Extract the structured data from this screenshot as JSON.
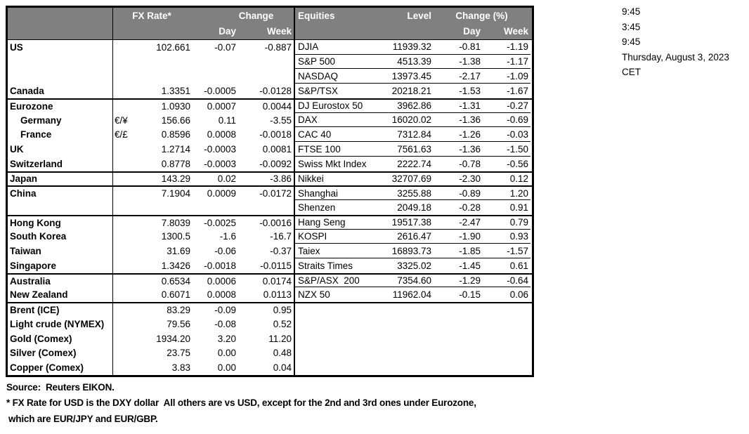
{
  "colors": {
    "header_bg": "#808080",
    "header_text": "#ffffff",
    "border": "#000000"
  },
  "header": {
    "fx_rate": "FX Rate*",
    "change": "Change",
    "day": "Day",
    "week": "Week",
    "equities": "Equities",
    "level": "Level",
    "change_pct": "Change (%)",
    "eday": "Day",
    "eweek": "Week"
  },
  "rows": [
    {
      "name": "US",
      "pair": "",
      "rate": "102.661",
      "day": "-0.07",
      "week": "-0.887",
      "eq": "DJIA",
      "level": "11939.32",
      "eday": "-0.81",
      "eweek": "-1.19",
      "group_start": false,
      "indent": false
    },
    {
      "name": "",
      "pair": "",
      "rate": "",
      "day": "",
      "week": "",
      "eq": "S&P 500",
      "level": "4513.39",
      "eday": "-1.38",
      "eweek": "-1.17",
      "group_start": false,
      "indent": false
    },
    {
      "name": "",
      "pair": "",
      "rate": "",
      "day": "",
      "week": "",
      "eq": "NASDAQ",
      "level": "13973.45",
      "eday": "-2.17",
      "eweek": "-1.09",
      "group_start": false,
      "indent": false
    },
    {
      "name": "Canada",
      "pair": "",
      "rate": "1.3351",
      "day": "-0.0005",
      "week": "-0.0128",
      "eq": "S&P/TSX",
      "level": "20218.21",
      "eday": "-1.53",
      "eweek": "-1.67",
      "group_start": false,
      "indent": false
    },
    {
      "name": "Eurozone",
      "pair": "",
      "rate": "1.0930",
      "day": "0.0007",
      "week": "0.0044",
      "eq": "DJ Eurostox 50",
      "level": "3962.86",
      "eday": "-1.31",
      "eweek": "-0.27",
      "group_start": true,
      "indent": false
    },
    {
      "name": "Germany",
      "pair": "€/¥",
      "rate": "156.66",
      "day": "0.11",
      "week": "-3.55",
      "eq": "DAX",
      "level": "16020.02",
      "eday": "-1.36",
      "eweek": "-0.69",
      "group_start": false,
      "indent": true
    },
    {
      "name": "France",
      "pair": "€/£",
      "rate": "0.8596",
      "day": "0.0008",
      "week": "-0.0018",
      "eq": "CAC 40",
      "level": "7312.84",
      "eday": "-1.26",
      "eweek": "-0.03",
      "group_start": false,
      "indent": true
    },
    {
      "name": "UK",
      "pair": "",
      "rate": "1.2714",
      "day": "-0.0003",
      "week": "0.0081",
      "eq": "FTSE 100",
      "level": "7561.63",
      "eday": "-1.36",
      "eweek": "-1.50",
      "group_start": false,
      "indent": false
    },
    {
      "name": "Switzerland",
      "pair": "",
      "rate": "0.8778",
      "day": "-0.0003",
      "week": "-0.0092",
      "eq": "Swiss Mkt Index",
      "level": "2222.74",
      "eday": "-0.78",
      "eweek": "-0.56",
      "group_start": false,
      "indent": false
    },
    {
      "name": "Japan",
      "pair": "",
      "rate": "143.29",
      "day": "0.02",
      "week": "-3.86",
      "eq": "Nikkei",
      "level": "32707.69",
      "eday": "-2.30",
      "eweek": "0.12",
      "group_start": true,
      "indent": false
    },
    {
      "name": "China",
      "pair": "",
      "rate": "7.1904",
      "day": "0.0009",
      "week": "-0.0172",
      "eq": "Shanghai",
      "level": "3255.88",
      "eday": "-0.89",
      "eweek": "1.20",
      "group_start": true,
      "indent": false
    },
    {
      "name": "",
      "pair": "",
      "rate": "",
      "day": "",
      "week": "",
      "eq": "Shenzen",
      "level": "2049.18",
      "eday": "-0.28",
      "eweek": "0.91",
      "group_start": false,
      "indent": false
    },
    {
      "name": "Hong Kong",
      "pair": "",
      "rate": "7.8039",
      "day": "-0.0025",
      "week": "-0.0016",
      "eq": "Hang Seng",
      "level": "19517.38",
      "eday": "-2.47",
      "eweek": "0.79",
      "group_start": true,
      "indent": false
    },
    {
      "name": "South Korea",
      "pair": "",
      "rate": "1300.5",
      "day": "-1.6",
      "week": "-16.7",
      "eq": "KOSPI",
      "level": "2616.47",
      "eday": "-1.90",
      "eweek": "0.93",
      "group_start": false,
      "indent": false
    },
    {
      "name": "Taiwan",
      "pair": "",
      "rate": "31.69",
      "day": "-0.06",
      "week": "-0.37",
      "eq": "Taiex",
      "level": "16893.73",
      "eday": "-1.85",
      "eweek": "-1.57",
      "group_start": false,
      "indent": false
    },
    {
      "name": "Singapore",
      "pair": "",
      "rate": "1.3426",
      "day": "-0.0018",
      "week": "-0.0115",
      "eq": "Straits Times",
      "level": "3325.02",
      "eday": "-1.45",
      "eweek": "0.61",
      "group_start": false,
      "indent": false
    },
    {
      "name": "Australia",
      "pair": "",
      "rate": "0.6534",
      "day": "0.0006",
      "week": "0.0174",
      "eq": "S&P/ASX  200",
      "level": "7354.60",
      "eday": "-1.29",
      "eweek": "-0.64",
      "group_start": true,
      "indent": false
    },
    {
      "name": "New Zealand",
      "pair": "",
      "rate": "0.6071",
      "day": "0.0008",
      "week": "0.0113",
      "eq": "NZX 50",
      "level": "11962.04",
      "eday": "-0.15",
      "eweek": "0.06",
      "group_start": false,
      "indent": false
    },
    {
      "name": "Brent (ICE)",
      "pair": "",
      "rate": "83.29",
      "day": "-0.09",
      "week": "0.95",
      "eq": "",
      "level": "",
      "eday": "",
      "eweek": "",
      "group_start": true,
      "indent": false
    },
    {
      "name": "Light crude (NYMEX)",
      "pair": "",
      "rate": "79.56",
      "day": "-0.08",
      "week": "0.52",
      "eq": "",
      "level": "",
      "eday": "",
      "eweek": "",
      "group_start": false,
      "indent": false
    },
    {
      "name": "Gold (Comex)",
      "pair": "",
      "rate": "1934.20",
      "day": "3.20",
      "week": "11.20",
      "eq": "",
      "level": "",
      "eday": "",
      "eweek": "",
      "group_start": false,
      "indent": false
    },
    {
      "name": "Silver (Comex)",
      "pair": "",
      "rate": "23.75",
      "day": "0.00",
      "week": "0.48",
      "eq": "",
      "level": "",
      "eday": "",
      "eweek": "",
      "group_start": false,
      "indent": false
    },
    {
      "name": "Copper (Comex)",
      "pair": "",
      "rate": "3.83",
      "day": "0.00",
      "week": "0.04",
      "eq": "",
      "level": "",
      "eday": "",
      "eweek": "",
      "group_start": false,
      "indent": false
    }
  ],
  "side": {
    "time1": "9:45",
    "time2": "3:45",
    "time3": "9:45",
    "date": "Thursday, August 3, 2023",
    "timezone": "CET"
  },
  "footer": {
    "source": "Source:  Reuters EIKON.",
    "note1": "* FX Rate for USD is the DXY dollar  All others are vs USD, except for the 2nd and 3rd ones under Eurozone,",
    "note2": "which are EUR/JPY and EUR/GBP."
  }
}
